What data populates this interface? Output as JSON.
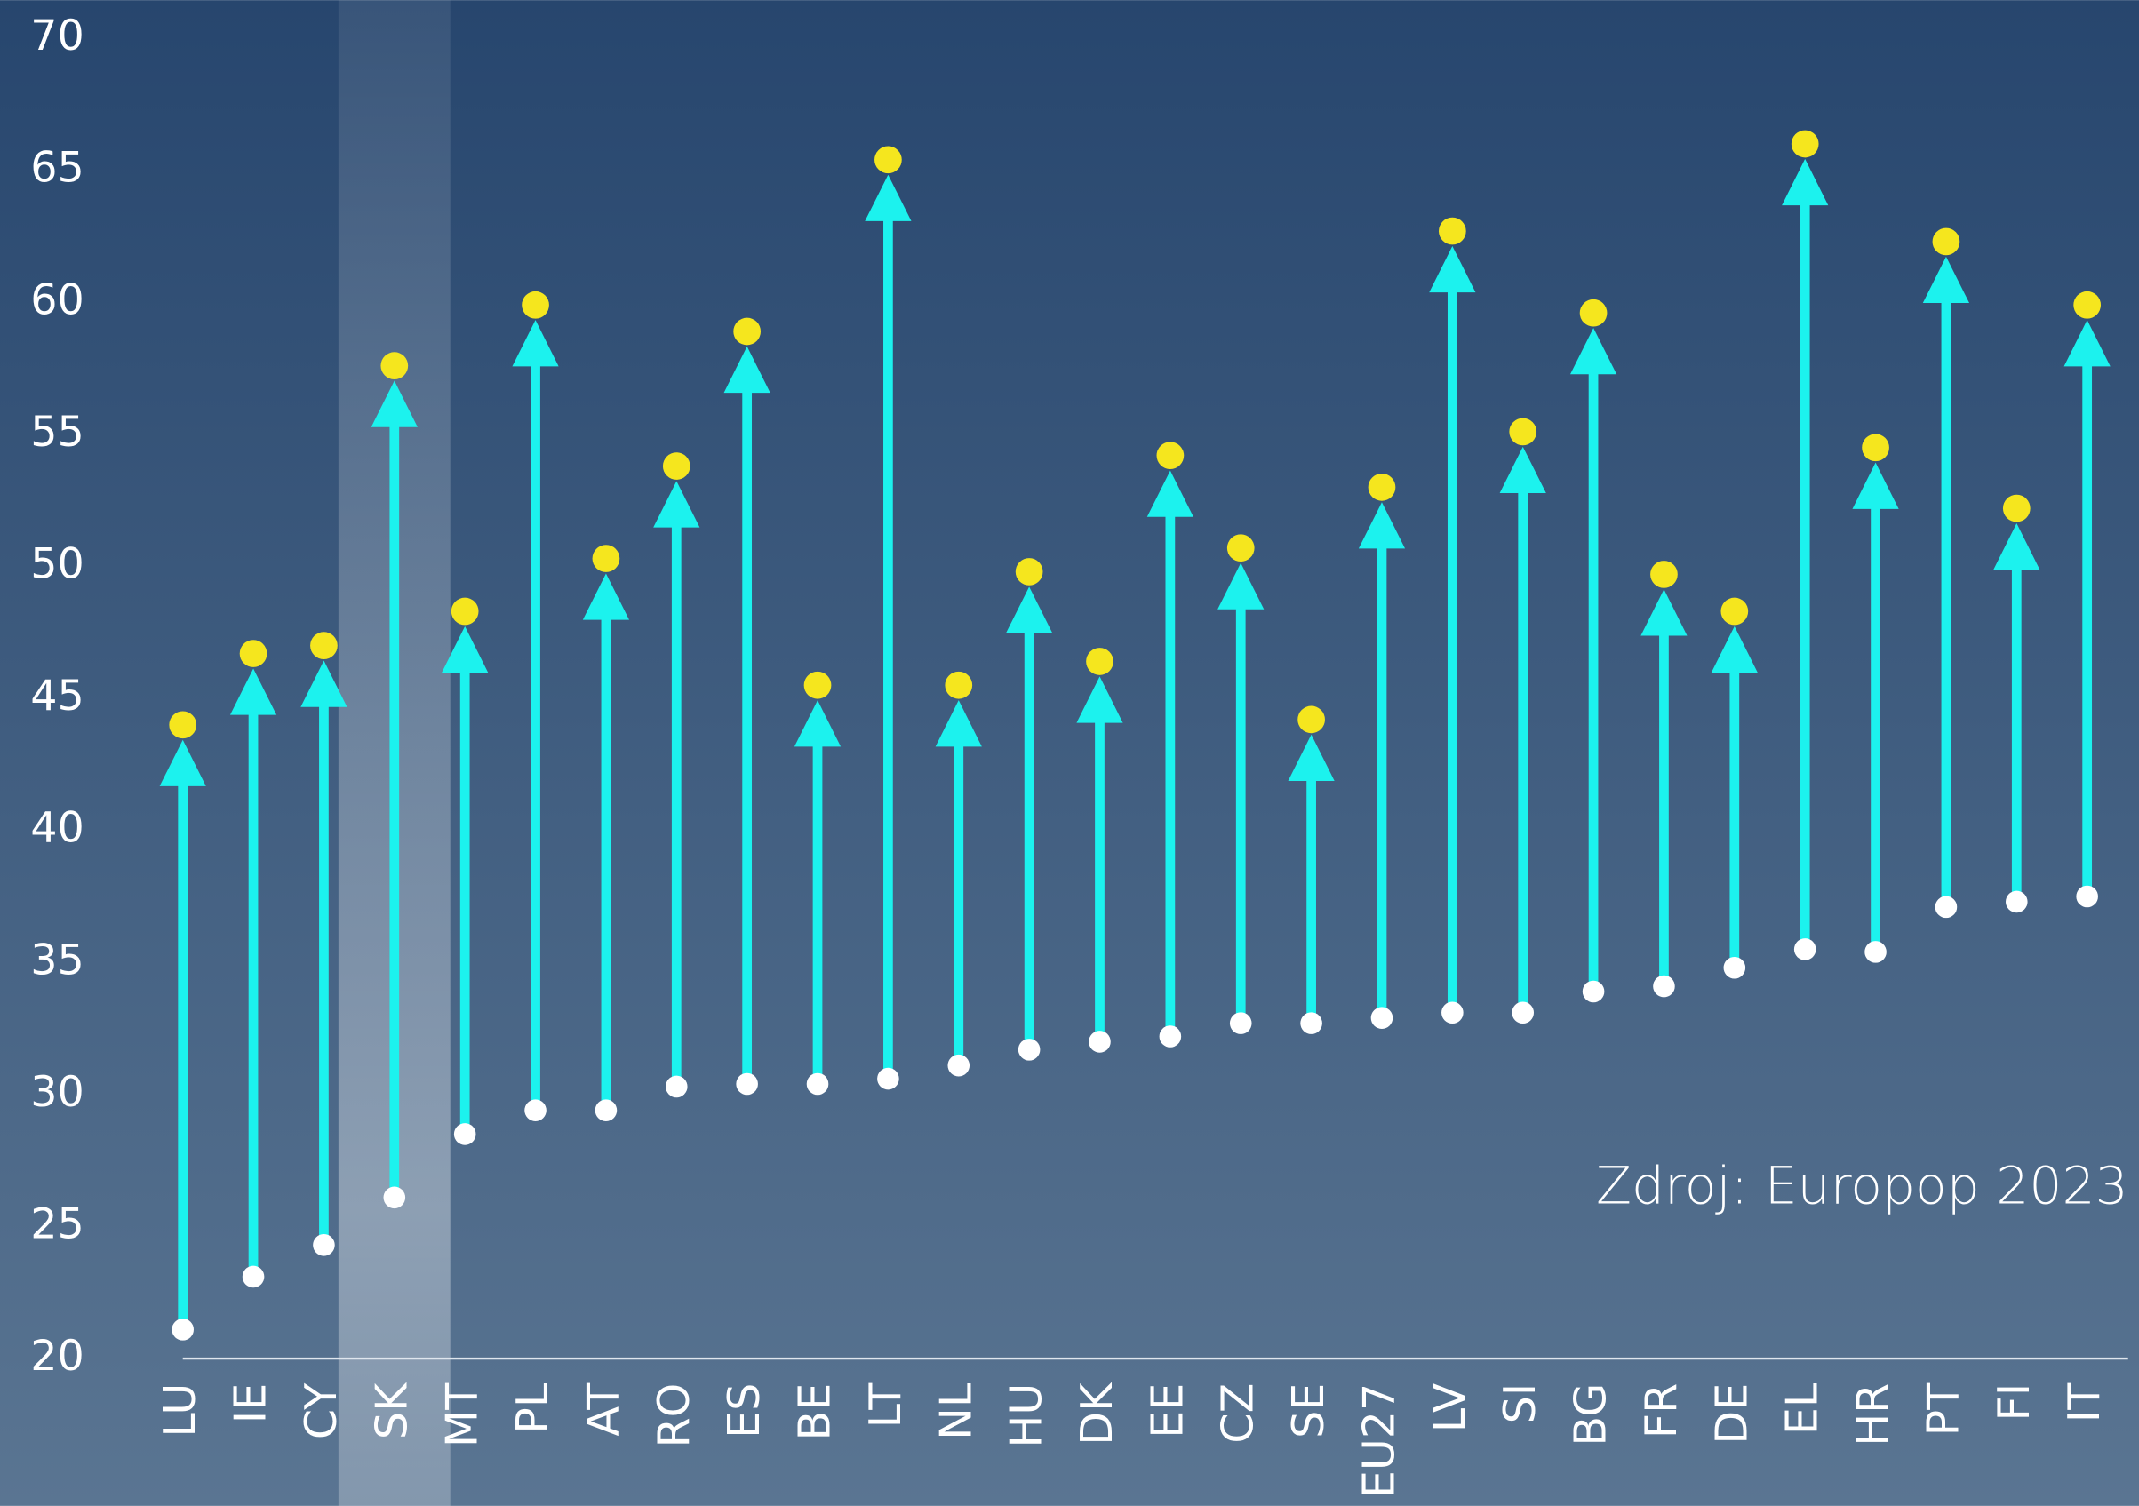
{
  "chart_data": {
    "type": "arrow-dumbbell",
    "annotation": "Zdroj: Europop 2023",
    "categories": [
      "LU",
      "IE",
      "CY",
      "SK",
      "MT",
      "PL",
      "AT",
      "RO",
      "ES",
      "BE",
      "LT",
      "NL",
      "HU",
      "DK",
      "EE",
      "CZ",
      "SE",
      "EU27",
      "LV",
      "SI",
      "BG",
      "FR",
      "DE",
      "EL",
      "HR",
      "PT",
      "FI",
      "IT"
    ],
    "series": [
      {
        "color": "#ffffff",
        "values": [
          21.1,
          23.1,
          24.3,
          26.1,
          28.5,
          29.4,
          29.4,
          30.3,
          30.4,
          30.4,
          30.6,
          31.1,
          31.7,
          32.0,
          32.2,
          32.7,
          32.7,
          32.9,
          33.1,
          33.1,
          33.9,
          34.1,
          34.8,
          35.5,
          35.4,
          37.1,
          37.3,
          37.5
        ]
      },
      {
        "color": "#f5e61e",
        "values": [
          44.0,
          46.7,
          47.0,
          57.6,
          48.3,
          59.9,
          50.3,
          53.8,
          58.9,
          45.5,
          65.4,
          45.5,
          49.8,
          46.4,
          54.2,
          50.7,
          44.2,
          53.0,
          62.7,
          55.1,
          59.6,
          49.7,
          48.3,
          66.0,
          54.5,
          62.3,
          52.2,
          59.9
        ]
      }
    ],
    "arrow_color": "#1cf2ee",
    "highlight": "SK",
    "ylim": [
      20,
      70
    ],
    "yticks": [
      20,
      25,
      30,
      35,
      40,
      45,
      50,
      55,
      60,
      65,
      70
    ],
    "grid": false
  }
}
